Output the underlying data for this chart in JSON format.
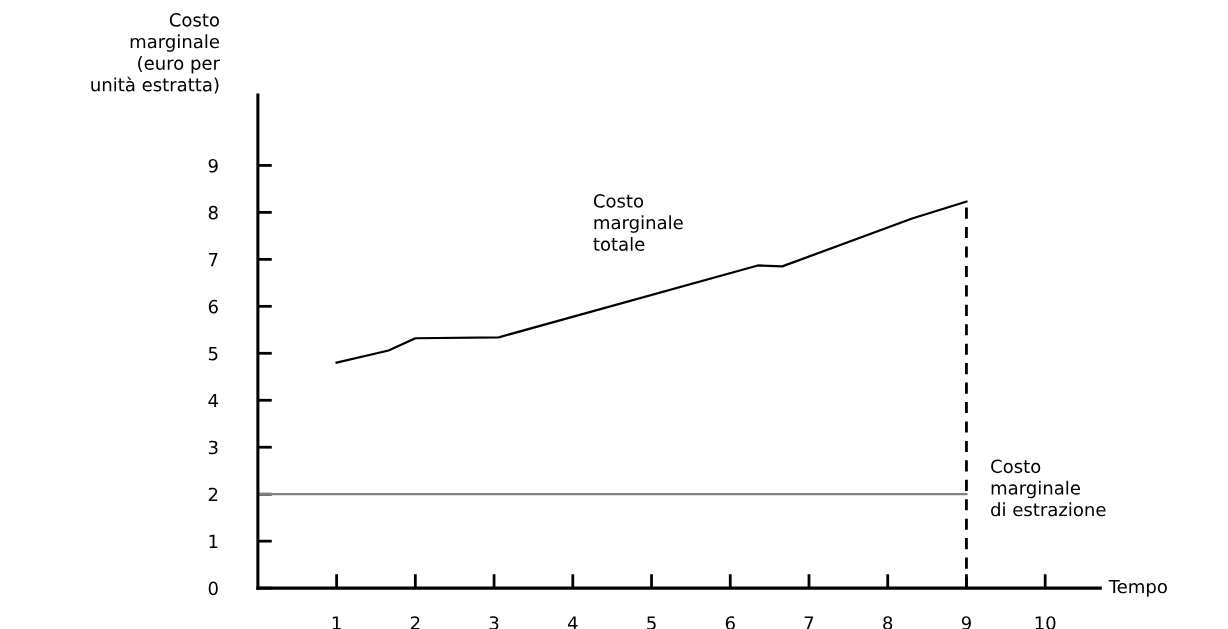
{
  "chart_data": {
    "type": "line",
    "xlabel": "Tempo",
    "ylabel": "Costo\nmarginale\n(euro per\nunità estratta)",
    "xlim": [
      0,
      10.7
    ],
    "ylim": [
      0,
      10.5
    ],
    "xticks": [
      1,
      2,
      3,
      4,
      5,
      6,
      7,
      8,
      9,
      10
    ],
    "yticks": [
      0,
      1,
      2,
      3,
      4,
      5,
      6,
      7,
      8,
      9
    ],
    "grid": false,
    "marker": "none",
    "series": [
      {
        "name": "Costo\nmarginale\ntotale",
        "color": "#000000",
        "line_style": "solid",
        "x": [
          1,
          1.66,
          2,
          3.06,
          6.35,
          6.66,
          8.31,
          9
        ],
        "values": [
          4.8,
          5.06,
          5.32,
          5.34,
          6.87,
          6.85,
          7.87,
          8.23
        ]
      },
      {
        "name": "Costo\nmarginale\ndi estrazione",
        "color": "#808080",
        "line_style": "solid",
        "x": [
          0,
          9
        ],
        "values": [
          2,
          2
        ]
      },
      {
        "color": "#000000",
        "line_style": "dashed",
        "x": [
          9,
          9
        ],
        "values": [
          0,
          8.23
        ]
      }
    ]
  }
}
